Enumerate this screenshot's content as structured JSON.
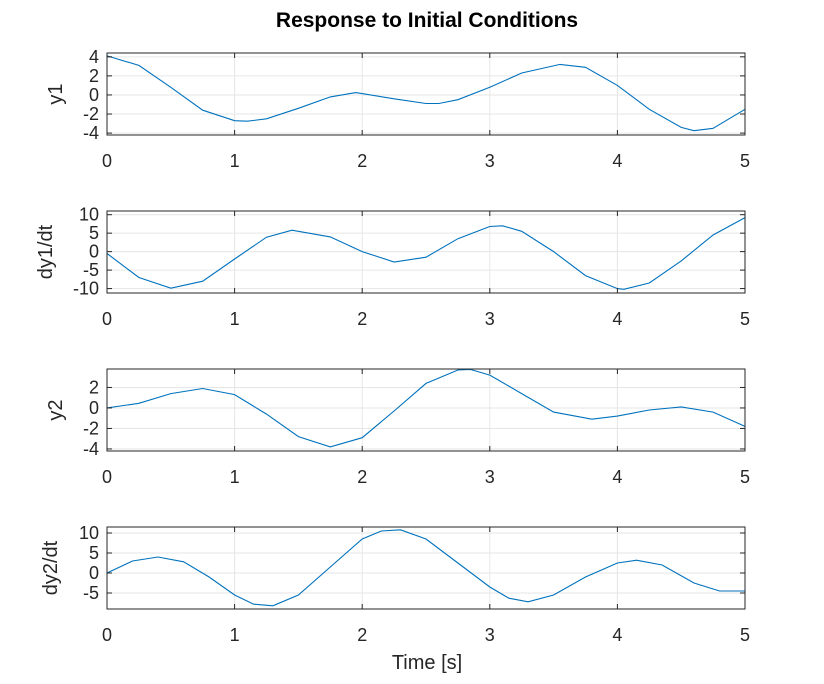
{
  "figure": {
    "title": "Response to Initial Conditions",
    "line_color": "#0072BD",
    "grid": true
  },
  "chart_data": [
    {
      "type": "line",
      "ylabel": "y1",
      "xlabel": "",
      "xlim": [
        0,
        5
      ],
      "ylim": [
        -4.2,
        4.4
      ],
      "xticks": [
        0,
        1,
        2,
        3,
        4,
        5
      ],
      "yticks": [
        -4,
        -2,
        0,
        2,
        4
      ],
      "series": [
        {
          "x": [
            0,
            0.25,
            0.5,
            0.75,
            1.0,
            1.1,
            1.25,
            1.5,
            1.75,
            1.95,
            2.25,
            2.5,
            2.6,
            2.75,
            3.0,
            3.25,
            3.55,
            3.75,
            4.0,
            4.25,
            4.5,
            4.6,
            4.75,
            5.0
          ],
          "y": [
            4.1,
            3.1,
            0.8,
            -1.6,
            -2.7,
            -2.75,
            -2.5,
            -1.4,
            -0.2,
            0.25,
            -0.4,
            -0.9,
            -0.9,
            -0.5,
            0.8,
            2.3,
            3.2,
            2.9,
            1.0,
            -1.5,
            -3.4,
            -3.75,
            -3.5,
            -1.5
          ]
        }
      ]
    },
    {
      "type": "line",
      "ylabel": "dy1/dt",
      "xlabel": "",
      "xlim": [
        0,
        5
      ],
      "ylim": [
        -11.2,
        11
      ],
      "xticks": [
        0,
        1,
        2,
        3,
        4,
        5
      ],
      "yticks": [
        -10,
        -5,
        0,
        5,
        10
      ],
      "series": [
        {
          "x": [
            0,
            0.25,
            0.5,
            0.75,
            1.0,
            1.25,
            1.45,
            1.75,
            2.0,
            2.25,
            2.5,
            2.75,
            3.0,
            3.1,
            3.25,
            3.5,
            3.75,
            4.0,
            4.05,
            4.25,
            4.5,
            4.75,
            5.0
          ],
          "y": [
            -0.5,
            -7.0,
            -9.9,
            -8.0,
            -2.0,
            3.9,
            5.8,
            4.0,
            0.0,
            -2.8,
            -1.5,
            3.5,
            6.8,
            7.0,
            5.5,
            0.0,
            -6.5,
            -10.0,
            -10.2,
            -8.5,
            -2.5,
            4.5,
            9.2
          ]
        }
      ]
    },
    {
      "type": "line",
      "ylabel": "y2",
      "xlabel": "",
      "xlim": [
        0,
        5
      ],
      "ylim": [
        -4.2,
        3.8
      ],
      "xticks": [
        0,
        1,
        2,
        3,
        4,
        5
      ],
      "yticks": [
        -4,
        -2,
        0,
        2
      ],
      "series": [
        {
          "x": [
            0,
            0.25,
            0.5,
            0.75,
            1.0,
            1.25,
            1.5,
            1.75,
            2.0,
            2.25,
            2.5,
            2.75,
            2.85,
            3.0,
            3.25,
            3.5,
            3.8,
            4.0,
            4.25,
            4.5,
            4.75,
            5.0
          ],
          "y": [
            0.0,
            0.45,
            1.4,
            1.9,
            1.3,
            -0.6,
            -2.8,
            -3.8,
            -2.9,
            -0.3,
            2.4,
            3.7,
            3.75,
            3.2,
            1.4,
            -0.4,
            -1.1,
            -0.8,
            -0.2,
            0.1,
            -0.4,
            -1.8
          ]
        }
      ]
    },
    {
      "type": "line",
      "ylabel": "dy2/dt",
      "xlabel": "Time [s]",
      "xlim": [
        0,
        5
      ],
      "ylim": [
        -9,
        11.5
      ],
      "xticks": [
        0,
        1,
        2,
        3,
        4,
        5
      ],
      "yticks": [
        -5,
        0,
        5,
        10
      ],
      "series": [
        {
          "x": [
            0,
            0.2,
            0.4,
            0.6,
            0.8,
            1.0,
            1.15,
            1.3,
            1.5,
            1.75,
            2.0,
            2.15,
            2.3,
            2.5,
            2.75,
            3.0,
            3.15,
            3.3,
            3.5,
            3.75,
            4.0,
            4.15,
            4.35,
            4.6,
            4.8,
            5.0
          ],
          "y": [
            0.0,
            3.0,
            4.0,
            2.8,
            -1.0,
            -5.5,
            -7.8,
            -8.2,
            -5.5,
            1.5,
            8.5,
            10.5,
            10.8,
            8.5,
            2.5,
            -3.5,
            -6.3,
            -7.2,
            -5.5,
            -1.0,
            2.5,
            3.2,
            2.0,
            -2.5,
            -4.5,
            -4.5
          ]
        }
      ]
    }
  ]
}
